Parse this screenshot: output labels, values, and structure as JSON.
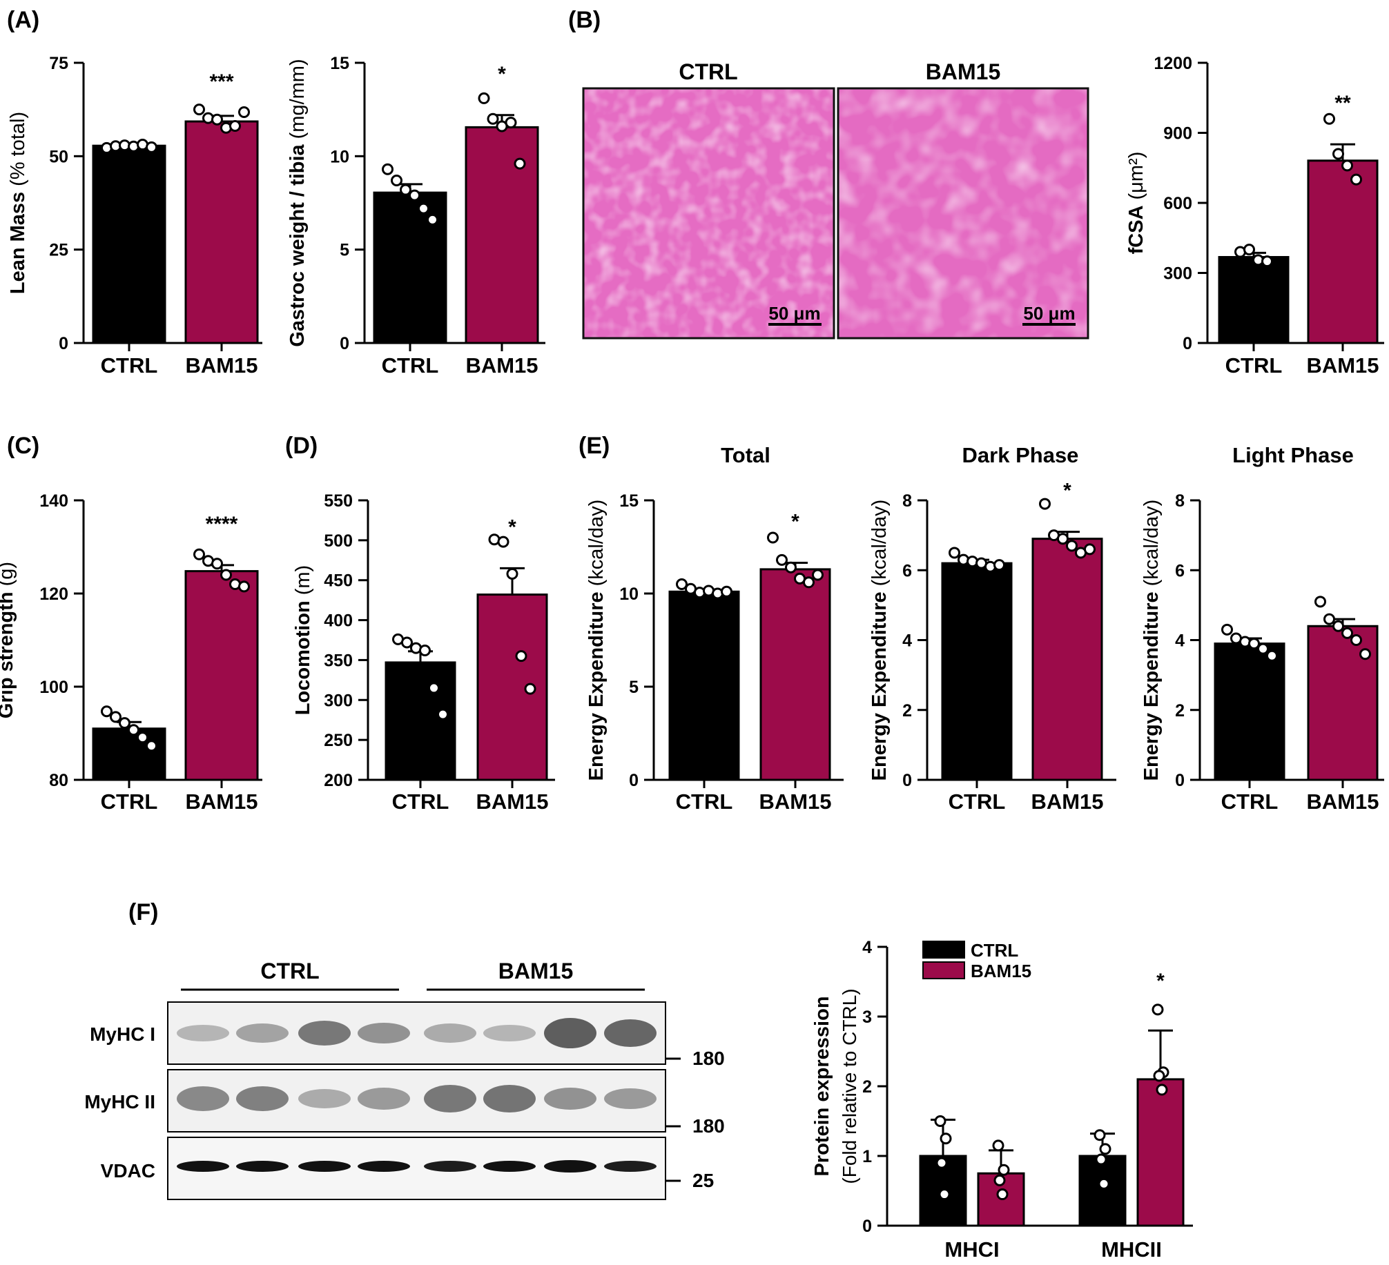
{
  "colors": {
    "ctrl": "#000000",
    "bam15": "#9c0b4a",
    "he_stain": "#e46bc2"
  },
  "panel_labels": [
    "(A)",
    "(B)",
    "(C)",
    "(D)",
    "(E)",
    "(F)"
  ],
  "chart_data": [
    {
      "id": "lean_mass",
      "type": "bar",
      "categories": [
        "CTRL",
        "BAM15"
      ],
      "ylabel_bold": "Lean Mass",
      "ylabel_normal": "(% total)",
      "ylim": [
        0,
        75
      ],
      "yticks": [
        "0",
        "25",
        "50",
        "75"
      ],
      "values": [
        52.8,
        59.3
      ],
      "errors": [
        0.4,
        1.5
      ],
      "sig": "***",
      "points": [
        [
          52.2,
          52.7,
          52.9,
          52.6,
          53.1,
          52.4
        ],
        [
          62.5,
          60.2,
          59.8,
          57.6,
          58.1,
          61.8
        ]
      ]
    },
    {
      "id": "gastroc",
      "type": "bar",
      "categories": [
        "CTRL",
        "BAM15"
      ],
      "ylabel_bold": "Gastroc weight / tibia",
      "ylabel_normal": "(mg/mm)",
      "ylim": [
        0,
        15
      ],
      "yticks": [
        "0",
        "5",
        "10",
        "15"
      ],
      "values": [
        8.05,
        11.55
      ],
      "errors": [
        0.45,
        0.65
      ],
      "sig": "*",
      "points": [
        [
          9.3,
          8.7,
          8.2,
          7.9,
          7.2,
          6.6
        ],
        [
          13.1,
          12.0,
          11.6,
          11.8,
          9.6
        ]
      ]
    },
    {
      "id": "fcsa",
      "type": "bar",
      "categories": [
        "CTRL",
        "BAM15"
      ],
      "ylabel_bold": "fCSA",
      "ylabel_normal": "(μm²)",
      "ylim": [
        0,
        1200
      ],
      "yticks": [
        "0",
        "300",
        "600",
        "900",
        "1200"
      ],
      "values": [
        368,
        781
      ],
      "errors": [
        18,
        70
      ],
      "sig": "**",
      "points": [
        [
          390,
          400,
          355,
          350
        ],
        [
          960,
          810,
          760,
          700
        ]
      ]
    },
    {
      "id": "grip",
      "type": "bar",
      "categories": [
        "CTRL",
        "BAM15"
      ],
      "ylabel_bold": "Grip strength",
      "ylabel_normal": "(g)",
      "ylim": [
        80,
        140
      ],
      "yticks": [
        "80",
        "100",
        "120",
        "140"
      ],
      "values": [
        91.0,
        124.8
      ],
      "errors": [
        1.4,
        1.3
      ],
      "sig": "****",
      "points": [
        [
          94.7,
          93.5,
          92.2,
          90.7,
          89.1,
          87.3
        ],
        [
          128.4,
          127.0,
          126.4,
          124.0,
          122.0,
          121.5
        ]
      ]
    },
    {
      "id": "locomotion",
      "type": "bar",
      "categories": [
        "CTRL",
        "BAM15"
      ],
      "ylabel_bold": "Locomotion",
      "ylabel_normal": "(m)",
      "ylim": [
        200,
        550
      ],
      "yticks": [
        "200",
        "250",
        "300",
        "350",
        "400",
        "450",
        "500",
        "550"
      ],
      "values": [
        347,
        432
      ],
      "errors": [
        14,
        33
      ],
      "sig": "*",
      "points": [
        [
          376,
          372,
          365,
          362,
          315,
          282
        ],
        [
          501,
          498,
          458,
          355,
          314
        ]
      ]
    },
    {
      "id": "ee_total",
      "type": "bar",
      "categories": [
        "CTRL",
        "BAM15"
      ],
      "title": "Total",
      "ylabel_bold": "Energy Expenditure",
      "ylabel_normal": "(kcal/day)",
      "ylim": [
        0,
        15
      ],
      "yticks": [
        "0",
        "5",
        "10",
        "15"
      ],
      "values": [
        10.1,
        11.3
      ],
      "errors": [
        0.12,
        0.35
      ],
      "sig": "*",
      "points": [
        [
          10.5,
          10.25,
          10.05,
          10.15,
          10.0,
          10.1
        ],
        [
          13.0,
          11.8,
          11.4,
          10.8,
          10.6,
          11.0
        ]
      ]
    },
    {
      "id": "ee_dark",
      "type": "bar",
      "categories": [
        "CTRL",
        "BAM15"
      ],
      "title": "Dark Phase",
      "ylabel_bold": "Energy Expenditure",
      "ylabel_normal": "(kcal/day)",
      "ylim": [
        0,
        8
      ],
      "yticks": [
        "0",
        "2",
        "4",
        "6",
        "8"
      ],
      "values": [
        6.2,
        6.9
      ],
      "errors": [
        0.1,
        0.2
      ],
      "sig": "*",
      "points": [
        [
          6.5,
          6.3,
          6.25,
          6.2,
          6.1,
          6.15
        ],
        [
          7.9,
          7.0,
          6.9,
          6.7,
          6.5,
          6.6
        ]
      ]
    },
    {
      "id": "ee_light",
      "type": "bar",
      "categories": [
        "CTRL",
        "BAM15"
      ],
      "title": "Light Phase",
      "ylabel_bold": "Energy Expenditure",
      "ylabel_normal": "(kcal/day)",
      "ylim": [
        0,
        8
      ],
      "yticks": [
        "0",
        "2",
        "4",
        "6",
        "8"
      ],
      "values": [
        3.9,
        4.4
      ],
      "errors": [
        0.15,
        0.2
      ],
      "sig": "",
      "points": [
        [
          4.3,
          4.05,
          3.95,
          3.9,
          3.75,
          3.55
        ],
        [
          5.1,
          4.6,
          4.4,
          4.2,
          4.0,
          3.6
        ]
      ]
    },
    {
      "id": "protein",
      "type": "bar",
      "groups": [
        "MHCI",
        "MHCII"
      ],
      "series": [
        {
          "name": "CTRL",
          "values": [
            1.0,
            1.0
          ],
          "errors": [
            0.52,
            0.32
          ],
          "points": [
            [
              1.5,
              1.25,
              0.9,
              0.45
            ],
            [
              1.3,
              1.1,
              0.95,
              0.6
            ]
          ]
        },
        {
          "name": "BAM15",
          "values": [
            0.75,
            2.1
          ],
          "errors": [
            0.33,
            0.7
          ],
          "points": [
            [
              1.15,
              0.8,
              0.65,
              0.45
            ],
            [
              3.1,
              2.2,
              2.15,
              1.95
            ]
          ]
        }
      ],
      "ylabel_bold": "Protein expression",
      "ylabel_normal": "(Fold relative to CTRL)",
      "ylim": [
        0,
        4
      ],
      "yticks": [
        "0",
        "1",
        "2",
        "3",
        "4"
      ],
      "sig": [
        "",
        "*"
      ]
    }
  ],
  "histology": {
    "labels": [
      "CTRL",
      "BAM15"
    ],
    "scale_bar": "50 μm"
  },
  "blot": {
    "groups": [
      "CTRL",
      "BAM15"
    ],
    "rows": [
      {
        "name": "MyHC I",
        "marker": "180"
      },
      {
        "name": "MyHC II",
        "marker": "180"
      },
      {
        "name": "VDAC",
        "marker": "25"
      }
    ]
  }
}
